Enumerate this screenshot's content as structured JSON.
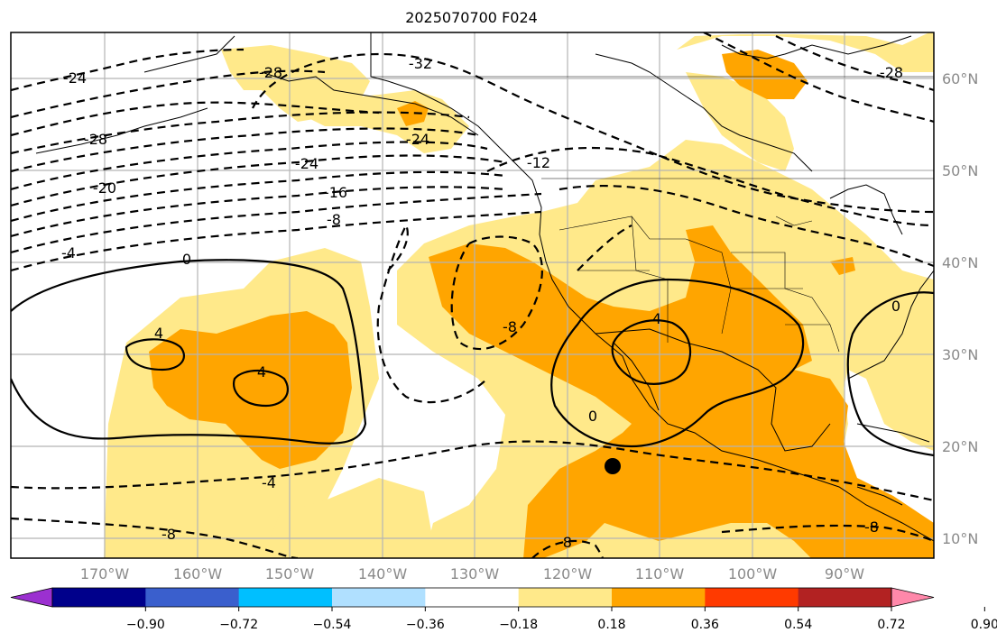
{
  "title": "2025070700 F024",
  "lat_labels": [
    "60°N",
    "50°N",
    "40°N",
    "30°N",
    "20°N",
    "10°N"
  ],
  "lon_labels": [
    "170°W",
    "160°W",
    "150°W",
    "140°W",
    "130°W",
    "120°W",
    "110°W",
    "100°W",
    "90°W"
  ],
  "colorbar": {
    "ticks": [
      "−0.90",
      "−0.72",
      "−0.54",
      "−0.36",
      "−0.18",
      "0.18",
      "0.36",
      "0.54",
      "0.72",
      "0.90"
    ],
    "colors": [
      "#9b30d0",
      "#00008b",
      "#3a5fcd",
      "#00bfff",
      "#b0e0ff",
      "#ffffff",
      "#ffe98a",
      "#ffa500",
      "#ff3a00",
      "#b22222",
      "#ff88aa"
    ]
  },
  "contour_labels": {
    "neg4_a": "-4",
    "neg4_b": "-4",
    "neg8_a": "-8",
    "neg8_b": "-8",
    "neg8_c": "-8",
    "neg12": "-12",
    "neg16": "-16",
    "neg20": "-20",
    "neg24_a": "-24",
    "neg24_b": "-24",
    "neg28_a": "-28",
    "neg28_b": "-28",
    "neg28_c": "-28",
    "neg32": "-32",
    "zero_a": "0",
    "zero_b": "0",
    "zero_c": "0",
    "pos4_a": "4",
    "pos4_b": "4",
    "pos4_c": "4",
    "neg8_d": "-8",
    "neg8_e": "-8"
  }
}
